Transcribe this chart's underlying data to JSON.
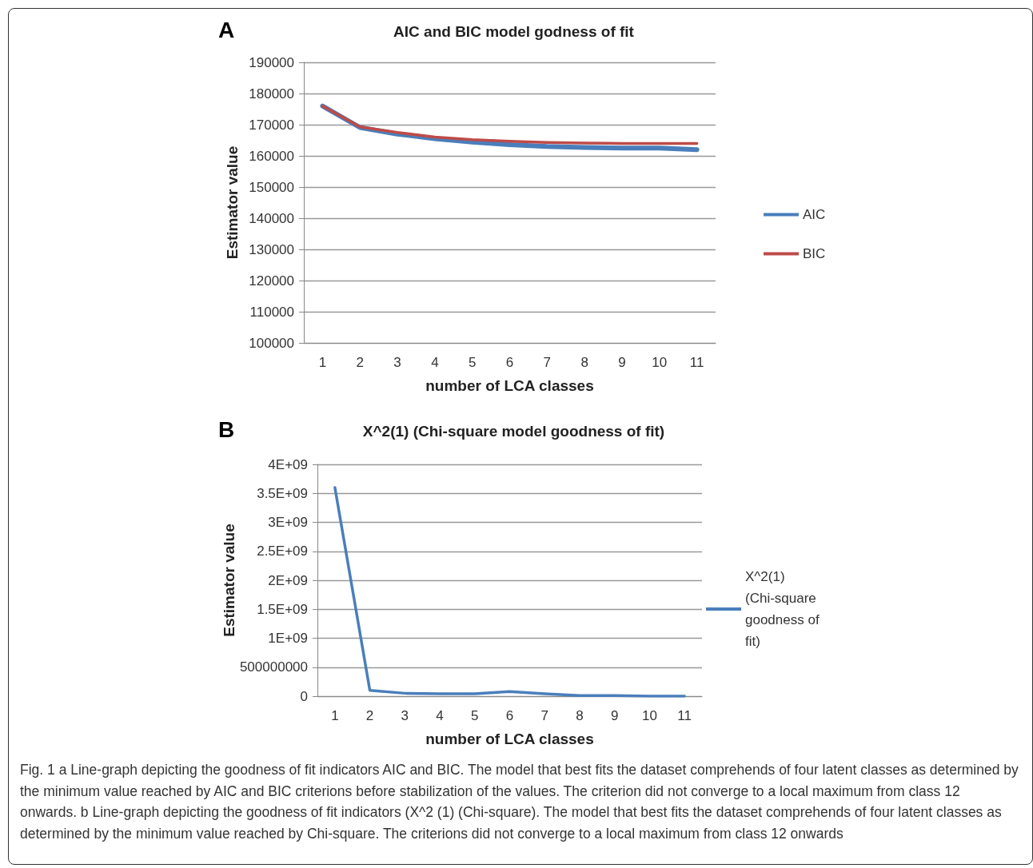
{
  "chart_data": [
    {
      "type": "line",
      "title": "AIC and BIC model godness of fit",
      "xlabel": "number of LCA classes",
      "ylabel": "Estimator value",
      "categories": [
        "1",
        "2",
        "3",
        "4",
        "5",
        "6",
        "7",
        "8",
        "9",
        "10",
        "11"
      ],
      "series": [
        {
          "name": "AIC",
          "color": "#4a7ebb",
          "values": [
            176000,
            169100,
            167000,
            165500,
            164400,
            163600,
            163000,
            162700,
            162500,
            162500,
            162000
          ]
        },
        {
          "name": "BIC",
          "color": "#be4b48",
          "values": [
            176000,
            169300,
            167500,
            166000,
            165200,
            164700,
            164300,
            164100,
            164000,
            164000,
            164000
          ]
        }
      ],
      "ylim": [
        100000,
        190000
      ],
      "yticks": [
        100000,
        110000,
        120000,
        130000,
        140000,
        150000,
        160000,
        170000,
        180000,
        190000
      ],
      "grid": "y",
      "legend": "right",
      "marker": "none",
      "line_style": "solid",
      "annotations": [
        "A"
      ]
    },
    {
      "type": "line",
      "title": "X^2(1) (Chi-square model goodness of fit)",
      "xlabel": "number of LCA classes",
      "ylabel": "Estimator value",
      "categories": [
        "1",
        "2",
        "3",
        "4",
        "5",
        "6",
        "7",
        "8",
        "9",
        "10",
        "11"
      ],
      "series": [
        {
          "name": "X^2(1) (Chi-square goodness of fit)",
          "color": "#4a7ebb",
          "values": [
            3600000000,
            100000000,
            50000000,
            40000000,
            40000000,
            80000000,
            40000000,
            10000000,
            10000000,
            0,
            0
          ]
        }
      ],
      "ylim": [
        0,
        4000000000
      ],
      "yticks": [
        0,
        {
          "value": 500000000,
          "label": "500000000"
        },
        {
          "value": 1000000000,
          "label": "1E+09"
        },
        {
          "value": 1500000000,
          "label": "1.5E+09"
        },
        {
          "value": 2000000000,
          "label": "2E+09"
        },
        {
          "value": 2500000000,
          "label": "2.5E+09"
        },
        {
          "value": 3000000000,
          "label": "3E+09"
        },
        {
          "value": 3500000000,
          "label": "3.5E+09"
        },
        {
          "value": 4000000000,
          "label": "4E+09"
        }
      ],
      "grid": "y",
      "legend": "right",
      "marker": "none",
      "line_style": "solid",
      "annotations": [
        "B",
        "Fig. 1 a Line-graph depicting the goodness of fit indicators AIC and BIC. The model that best fits the dataset comprehends of four latent classes as determined by the minimum value reached by AIC and BIC criterions before stabilization of the values. The criterion did not converge to a local maximum from class 12 onwards. b Line-graph depicting the goodness of fit indicators (X^2 (1) (Chi-square). The model that best fits the dataset comprehends of four latent classes as determined by the minimum value reached by Chi-square. The criterions did not converge to a local maximum from class 12 onwards"
      ]
    }
  ]
}
